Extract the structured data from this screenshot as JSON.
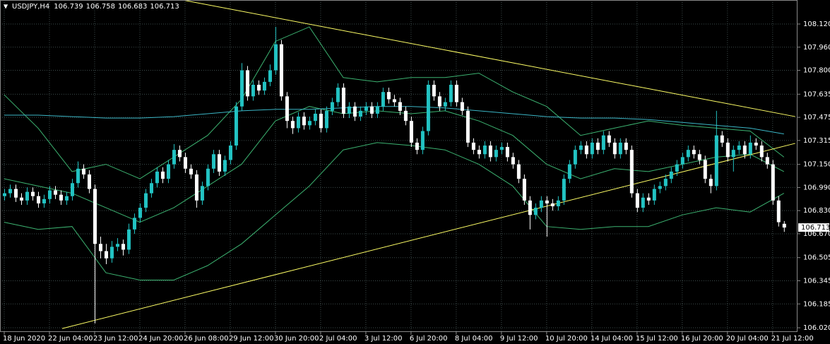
{
  "chart_data": {
    "type": "candlestick",
    "title": "USDJPY,H4",
    "bull_color": "#22c3c3",
    "bear_color": "#ffffff",
    "grid": true,
    "xlim": [
      -0.75,
      140.4
    ],
    "ylim": [
      105.991,
      108.286
    ],
    "yticks": [
      {
        "value": 108.12,
        "label": "108.120"
      },
      {
        "value": 107.96,
        "label": "107.960"
      },
      {
        "value": 107.8,
        "label": "107.800"
      },
      107.635,
      {
        "value": 107.475,
        "label": "107.475"
      },
      107.315,
      {
        "value": 107.15,
        "label": "107.150"
      },
      {
        "value": 106.99,
        "label": "106.990"
      },
      {
        "value": 106.83,
        "label": "106.830"
      },
      {
        "value": 106.67,
        "label": "106.670"
      },
      106.505,
      106.345,
      106.185,
      {
        "value": 106.02,
        "label": "106.020"
      }
    ],
    "xticks": [
      {
        "value": 0,
        "label": "18 Jun 2020"
      },
      {
        "value": 8,
        "label": "22 Jun 04:00"
      },
      {
        "value": 16,
        "label": "23 Jun 12:00"
      },
      {
        "value": 24,
        "label": "24 Jun 20:00"
      },
      {
        "value": 32,
        "label": "26 Jun 08:00"
      },
      {
        "value": 40,
        "label": "29 Jun 12:00"
      },
      {
        "value": 48,
        "label": "30 Jun 20:00"
      },
      {
        "value": 56,
        "label": "2 Jul 04:00"
      },
      {
        "value": 64,
        "label": "3 Jul 12:00"
      },
      {
        "value": 72,
        "label": "6 Jul 20:00"
      },
      {
        "value": 80,
        "label": "8 Jul 04:00"
      },
      {
        "value": 88,
        "label": "9 Jul 12:00"
      },
      {
        "value": 96,
        "label": "10 Jul 20:00"
      },
      {
        "value": 104,
        "label": "14 Jul 04:00"
      },
      {
        "value": 112,
        "label": "15 Jul 12:00"
      },
      {
        "value": 120,
        "label": "16 Jul 20:00"
      },
      {
        "value": 128,
        "label": "20 Jul 04:00"
      },
      {
        "value": 136,
        "label": "21 Jul 12:00"
      }
    ],
    "ohlc": [
      [
        106.93,
        106.98,
        106.9,
        106.95
      ],
      [
        106.95,
        107.01,
        106.92,
        106.98
      ],
      [
        106.98,
        107.01,
        106.89,
        106.92
      ],
      [
        106.92,
        106.95,
        106.87,
        106.9
      ],
      [
        106.9,
        106.99,
        106.87,
        106.96
      ],
      [
        106.96,
        106.99,
        106.9,
        106.93
      ],
      [
        106.93,
        106.96,
        106.85,
        106.88
      ],
      [
        106.88,
        106.94,
        106.85,
        106.91
      ],
      [
        106.91,
        107.0,
        106.88,
        106.97
      ],
      [
        106.97,
        107.0,
        106.91,
        106.94
      ],
      [
        106.94,
        106.97,
        106.87,
        106.9
      ],
      [
        106.9,
        106.96,
        106.87,
        106.93
      ],
      [
        106.93,
        107.05,
        106.9,
        107.02
      ],
      [
        107.02,
        107.17,
        106.99,
        107.12
      ],
      [
        107.12,
        107.15,
        107.05,
        107.08
      ],
      [
        107.08,
        107.11,
        106.95,
        106.98
      ],
      [
        106.98,
        107.01,
        106.05,
        106.6
      ],
      [
        106.6,
        106.65,
        106.5,
        106.55
      ],
      [
        106.55,
        106.6,
        106.46,
        106.5
      ],
      [
        106.5,
        106.62,
        106.47,
        106.58
      ],
      [
        106.58,
        106.64,
        106.55,
        106.6
      ],
      [
        106.6,
        106.63,
        106.52,
        106.56
      ],
      [
        106.56,
        106.74,
        106.53,
        106.7
      ],
      [
        106.7,
        106.81,
        106.67,
        106.78
      ],
      [
        106.78,
        106.88,
        106.75,
        106.85
      ],
      [
        106.85,
        106.98,
        106.82,
        106.95
      ],
      [
        106.95,
        107.05,
        106.92,
        107.02
      ],
      [
        107.02,
        107.13,
        106.99,
        107.1
      ],
      [
        107.1,
        107.13,
        107.02,
        107.05
      ],
      [
        107.05,
        107.18,
        107.02,
        107.15
      ],
      [
        107.15,
        107.29,
        107.12,
        107.25
      ],
      [
        107.25,
        107.28,
        107.17,
        107.2
      ],
      [
        107.2,
        107.23,
        107.09,
        107.12
      ],
      [
        107.12,
        107.15,
        107.05,
        107.08
      ],
      [
        107.08,
        107.11,
        106.85,
        106.9
      ],
      [
        106.9,
        107.03,
        106.87,
        107.0
      ],
      [
        107.0,
        107.15,
        106.97,
        107.12
      ],
      [
        107.12,
        107.25,
        107.09,
        107.22
      ],
      [
        107.22,
        107.25,
        107.07,
        107.1
      ],
      [
        107.1,
        107.21,
        107.07,
        107.18
      ],
      [
        107.18,
        107.31,
        107.15,
        107.28
      ],
      [
        107.28,
        107.58,
        107.25,
        107.55
      ],
      [
        107.55,
        107.85,
        107.52,
        107.8
      ],
      [
        107.8,
        107.83,
        107.59,
        107.62
      ],
      [
        107.62,
        107.73,
        107.59,
        107.7
      ],
      [
        107.7,
        107.73,
        107.63,
        107.66
      ],
      [
        107.66,
        107.75,
        107.63,
        107.72
      ],
      [
        107.72,
        107.84,
        107.69,
        107.8
      ],
      [
        107.8,
        108.1,
        107.77,
        107.98
      ],
      [
        107.98,
        108.01,
        107.59,
        107.62
      ],
      [
        107.62,
        107.65,
        107.4,
        107.45
      ],
      [
        107.45,
        107.48,
        107.36,
        107.4
      ],
      [
        107.4,
        107.51,
        107.37,
        107.48
      ],
      [
        107.48,
        107.51,
        107.39,
        107.42
      ],
      [
        107.42,
        107.48,
        107.39,
        107.45
      ],
      [
        107.45,
        107.53,
        107.42,
        107.5
      ],
      [
        107.5,
        107.53,
        107.37,
        107.4
      ],
      [
        107.4,
        107.55,
        107.37,
        107.52
      ],
      [
        107.52,
        107.61,
        107.49,
        107.58
      ],
      [
        107.58,
        107.71,
        107.55,
        107.68
      ],
      [
        107.68,
        107.71,
        107.47,
        107.5
      ],
      [
        107.5,
        107.58,
        107.47,
        107.55
      ],
      [
        107.55,
        107.58,
        107.45,
        107.48
      ],
      [
        107.48,
        107.55,
        107.45,
        107.52
      ],
      [
        107.52,
        107.58,
        107.49,
        107.55
      ],
      [
        107.55,
        107.58,
        107.47,
        107.5
      ],
      [
        107.5,
        107.58,
        107.47,
        107.55
      ],
      [
        107.55,
        107.68,
        107.52,
        107.65
      ],
      [
        107.65,
        107.68,
        107.57,
        107.6
      ],
      [
        107.6,
        107.63,
        107.55,
        107.58
      ],
      [
        107.58,
        107.61,
        107.49,
        107.52
      ],
      [
        107.52,
        107.55,
        107.42,
        107.45
      ],
      [
        107.45,
        107.48,
        107.27,
        107.3
      ],
      [
        107.3,
        107.33,
        107.22,
        107.25
      ],
      [
        107.25,
        107.41,
        107.22,
        107.38
      ],
      [
        107.38,
        107.73,
        107.35,
        107.7
      ],
      [
        107.7,
        107.73,
        107.59,
        107.62
      ],
      [
        107.62,
        107.65,
        107.52,
        107.55
      ],
      [
        107.55,
        107.61,
        107.52,
        107.58
      ],
      [
        107.58,
        107.73,
        107.55,
        107.7
      ],
      [
        107.7,
        107.73,
        107.55,
        107.58
      ],
      [
        107.58,
        107.61,
        107.49,
        107.52
      ],
      [
        107.52,
        107.55,
        107.27,
        107.3
      ],
      [
        107.3,
        107.33,
        107.22,
        107.25
      ],
      [
        107.25,
        107.28,
        107.19,
        107.22
      ],
      [
        107.22,
        107.31,
        107.19,
        107.28
      ],
      [
        107.28,
        107.31,
        107.17,
        107.2
      ],
      [
        107.2,
        107.28,
        107.17,
        107.25
      ],
      [
        107.25,
        107.3,
        107.22,
        107.27
      ],
      [
        107.27,
        107.3,
        107.17,
        107.2
      ],
      [
        107.2,
        107.23,
        107.12,
        107.15
      ],
      [
        107.15,
        107.18,
        107.02,
        107.05
      ],
      [
        107.05,
        107.08,
        106.87,
        106.9
      ],
      [
        106.9,
        106.93,
        106.7,
        106.8
      ],
      [
        106.8,
        106.88,
        106.77,
        106.85
      ],
      [
        106.85,
        106.93,
        106.82,
        106.9
      ],
      [
        106.9,
        106.93,
        106.65,
        106.88
      ],
      [
        106.88,
        106.91,
        106.83,
        106.86
      ],
      [
        106.86,
        106.93,
        106.83,
        106.9
      ],
      [
        106.9,
        107.08,
        106.87,
        107.05
      ],
      [
        107.05,
        107.18,
        107.02,
        107.15
      ],
      [
        107.15,
        107.28,
        107.12,
        107.25
      ],
      [
        107.25,
        107.31,
        107.22,
        107.28
      ],
      [
        107.28,
        107.31,
        107.19,
        107.22
      ],
      [
        107.22,
        107.33,
        107.19,
        107.3
      ],
      [
        107.3,
        107.33,
        107.22,
        107.25
      ],
      [
        107.25,
        107.38,
        107.22,
        107.35
      ],
      [
        107.35,
        107.38,
        107.27,
        107.3
      ],
      [
        107.3,
        107.33,
        107.19,
        107.22
      ],
      [
        107.22,
        107.33,
        107.19,
        107.3
      ],
      [
        107.3,
        107.33,
        107.22,
        107.25
      ],
      [
        107.25,
        107.28,
        106.92,
        106.95
      ],
      [
        106.95,
        106.98,
        106.82,
        106.85
      ],
      [
        106.85,
        106.95,
        106.82,
        106.92
      ],
      [
        106.92,
        106.95,
        106.87,
        106.9
      ],
      [
        106.9,
        107.01,
        106.87,
        106.98
      ],
      [
        106.98,
        107.03,
        106.95,
        107.0
      ],
      [
        107.0,
        107.08,
        106.97,
        107.05
      ],
      [
        107.05,
        107.13,
        107.02,
        107.1
      ],
      [
        107.1,
        107.18,
        107.07,
        107.15
      ],
      [
        107.15,
        107.23,
        107.12,
        107.2
      ],
      [
        107.2,
        107.28,
        107.17,
        107.25
      ],
      [
        107.25,
        107.28,
        107.19,
        107.22
      ],
      [
        107.22,
        107.25,
        107.15,
        107.18
      ],
      [
        107.18,
        107.21,
        107.02,
        107.05
      ],
      [
        107.05,
        107.08,
        106.95,
        107.0
      ],
      [
        107.0,
        107.52,
        106.97,
        107.35
      ],
      [
        107.35,
        107.38,
        107.27,
        107.3
      ],
      [
        107.3,
        107.33,
        107.17,
        107.2
      ],
      [
        107.2,
        107.28,
        107.1,
        107.25
      ],
      [
        107.25,
        107.31,
        107.22,
        107.28
      ],
      [
        107.28,
        107.31,
        107.19,
        107.22
      ],
      [
        107.22,
        107.35,
        107.19,
        107.3
      ],
      [
        107.3,
        107.33,
        107.25,
        107.28
      ],
      [
        107.28,
        107.31,
        107.17,
        107.2
      ],
      [
        107.2,
        107.23,
        107.12,
        107.15
      ],
      [
        107.15,
        107.18,
        106.87,
        106.9
      ],
      [
        106.9,
        106.93,
        106.72,
        106.75
      ],
      [
        106.739,
        106.758,
        106.683,
        106.713
      ]
    ],
    "overlays": {
      "x": [
        0,
        6,
        12,
        18,
        24,
        30,
        36,
        42,
        48,
        54,
        60,
        66,
        72,
        78,
        84,
        90,
        96,
        102,
        108,
        114,
        120,
        126,
        132,
        138
      ],
      "series": [
        {
          "color": "#3cb371",
          "values": [
            107.63,
            107.4,
            107.1,
            107.15,
            107.05,
            107.2,
            107.35,
            107.6,
            108.0,
            108.1,
            107.75,
            107.72,
            107.75,
            107.75,
            107.78,
            107.65,
            107.55,
            107.35,
            107.4,
            107.45,
            107.42,
            107.4,
            107.38,
            107.2
          ]
        },
        {
          "color": "#3cb371",
          "values": [
            107.05,
            107.0,
            106.95,
            106.85,
            106.75,
            106.85,
            107.0,
            107.15,
            107.45,
            107.55,
            107.5,
            107.52,
            107.5,
            107.52,
            107.45,
            107.35,
            107.15,
            107.05,
            107.12,
            107.1,
            107.15,
            107.2,
            107.22,
            107.1
          ]
        },
        {
          "color": "#3cb371",
          "values": [
            106.75,
            106.7,
            106.72,
            106.4,
            106.35,
            106.35,
            106.45,
            106.6,
            106.8,
            107.0,
            107.25,
            107.3,
            107.28,
            107.25,
            107.15,
            107.0,
            106.72,
            106.7,
            106.72,
            106.72,
            106.8,
            106.85,
            106.82,
            106.95
          ]
        },
        {
          "color": "#3bb6c6",
          "values": [
            107.49,
            107.49,
            107.48,
            107.47,
            107.47,
            107.48,
            107.5,
            107.52,
            107.53,
            107.53,
            107.54,
            107.55,
            107.55,
            107.54,
            107.52,
            107.5,
            107.48,
            107.47,
            107.47,
            107.46,
            107.44,
            107.42,
            107.4,
            107.36
          ]
        }
      ]
    },
    "trendlines": {
      "color": "#ffff66",
      "lines": [
        {
          "x": [
            31,
            140
          ],
          "y": [
            108.29,
            107.48
          ]
        },
        {
          "x": [
            10.25,
            140
          ],
          "y": [
            106.015,
            107.295
          ]
        }
      ]
    }
  }
}
